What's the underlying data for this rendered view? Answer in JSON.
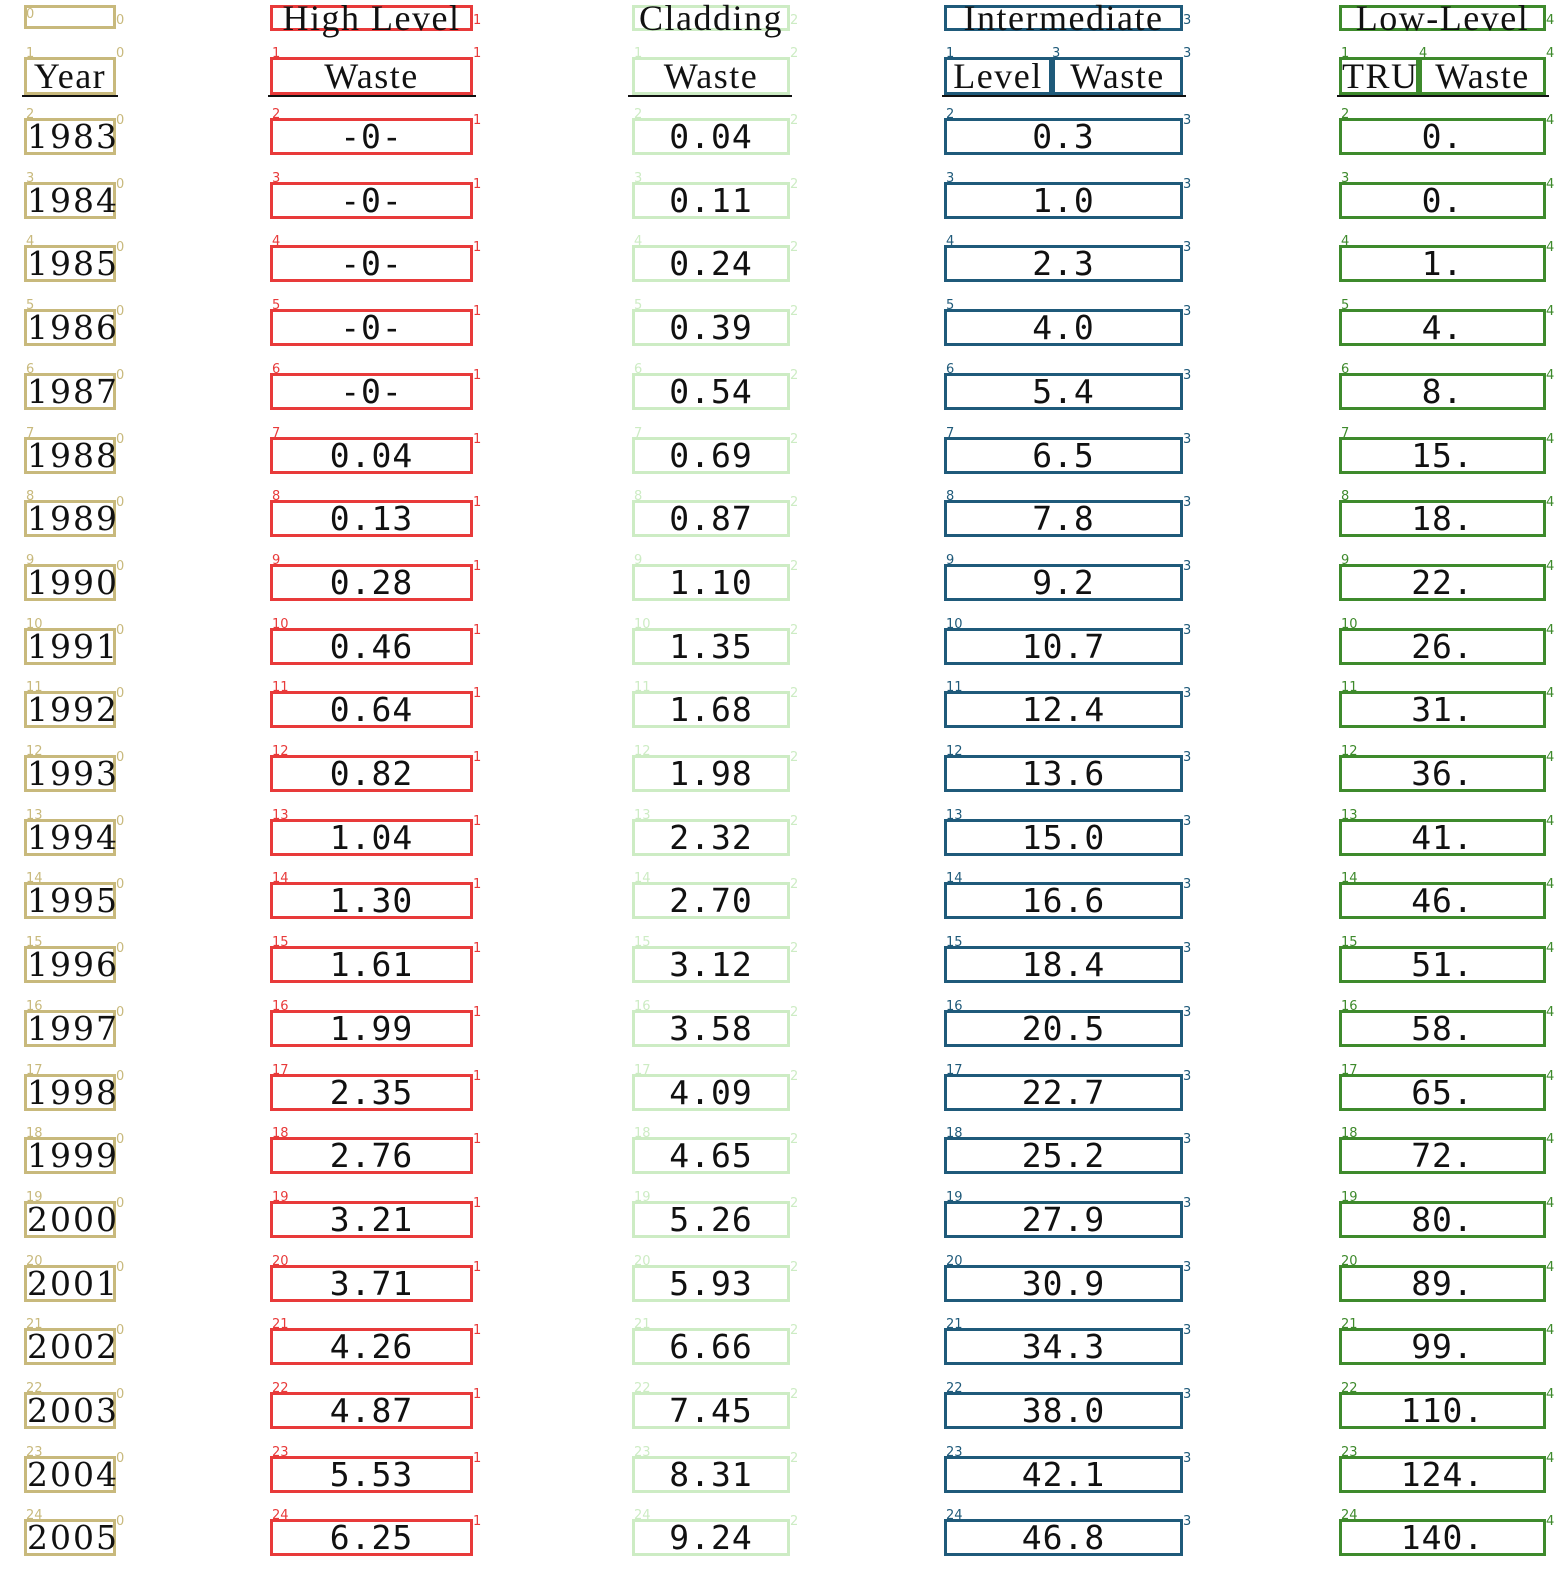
{
  "headers": {
    "year": [
      "",
      "Year"
    ],
    "high_level_waste": [
      "High Level",
      "Waste"
    ],
    "cladding_waste": [
      "Cladding",
      "Waste"
    ],
    "intermediate_level_waste": [
      "Intermediate",
      "Level",
      "Waste"
    ],
    "low_level_tru_waste": [
      "Low-Level",
      "TRU",
      "Waste"
    ]
  },
  "rows": [
    {
      "year": "1983",
      "hlw": "-0-",
      "clad": "0.04",
      "ilw": "0.3",
      "llw": "0."
    },
    {
      "year": "1984",
      "hlw": "-0-",
      "clad": "0.11",
      "ilw": "1.0",
      "llw": "0."
    },
    {
      "year": "1985",
      "hlw": "-0-",
      "clad": "0.24",
      "ilw": "2.3",
      "llw": "1."
    },
    {
      "year": "1986",
      "hlw": "-0-",
      "clad": "0.39",
      "ilw": "4.0",
      "llw": "4."
    },
    {
      "year": "1987",
      "hlw": "-0-",
      "clad": "0.54",
      "ilw": "5.4",
      "llw": "8."
    },
    {
      "year": "1988",
      "hlw": "0.04",
      "clad": "0.69",
      "ilw": "6.5",
      "llw": "15."
    },
    {
      "year": "1989",
      "hlw": "0.13",
      "clad": "0.87",
      "ilw": "7.8",
      "llw": "18."
    },
    {
      "year": "1990",
      "hlw": "0.28",
      "clad": "1.10",
      "ilw": "9.2",
      "llw": "22."
    },
    {
      "year": "1991",
      "hlw": "0.46",
      "clad": "1.35",
      "ilw": "10.7",
      "llw": "26."
    },
    {
      "year": "1992",
      "hlw": "0.64",
      "clad": "1.68",
      "ilw": "12.4",
      "llw": "31."
    },
    {
      "year": "1993",
      "hlw": "0.82",
      "clad": "1.98",
      "ilw": "13.6",
      "llw": "36."
    },
    {
      "year": "1994",
      "hlw": "1.04",
      "clad": "2.32",
      "ilw": "15.0",
      "llw": "41."
    },
    {
      "year": "1995",
      "hlw": "1.30",
      "clad": "2.70",
      "ilw": "16.6",
      "llw": "46."
    },
    {
      "year": "1996",
      "hlw": "1.61",
      "clad": "3.12",
      "ilw": "18.4",
      "llw": "51."
    },
    {
      "year": "1997",
      "hlw": "1.99",
      "clad": "3.58",
      "ilw": "20.5",
      "llw": "58."
    },
    {
      "year": "1998",
      "hlw": "2.35",
      "clad": "4.09",
      "ilw": "22.7",
      "llw": "65."
    },
    {
      "year": "1999",
      "hlw": "2.76",
      "clad": "4.65",
      "ilw": "25.2",
      "llw": "72."
    },
    {
      "year": "2000",
      "hlw": "3.21",
      "clad": "5.26",
      "ilw": "27.9",
      "llw": "80."
    },
    {
      "year": "2001",
      "hlw": "3.71",
      "clad": "5.93",
      "ilw": "30.9",
      "llw": "89."
    },
    {
      "year": "2002",
      "hlw": "4.26",
      "clad": "6.66",
      "ilw": "34.3",
      "llw": "99."
    },
    {
      "year": "2003",
      "hlw": "4.87",
      "clad": "7.45",
      "ilw": "38.0",
      "llw": "110."
    },
    {
      "year": "2004",
      "hlw": "5.53",
      "clad": "8.31",
      "ilw": "42.1",
      "llw": "124."
    },
    {
      "year": "2005",
      "hlw": "6.25",
      "clad": "9.24",
      "ilw": "46.8",
      "llw": "140."
    }
  ],
  "row_index_labels": [
    "0",
    "1",
    "2",
    "3",
    "4",
    "5",
    "6",
    "7",
    "8",
    "9",
    "10",
    "11",
    "12",
    "13",
    "14",
    "15",
    "16",
    "17",
    "18",
    "19",
    "20",
    "21",
    "22",
    "23",
    "24"
  ],
  "column_index_labels": [
    "0",
    "1",
    "2",
    "3",
    "4"
  ],
  "colors": {
    "col0": "#c8b97c",
    "col1": "#e83a3a",
    "col2": "#cdecc4",
    "col3": "#1f5a7a",
    "col4": "#3e8a2c"
  }
}
